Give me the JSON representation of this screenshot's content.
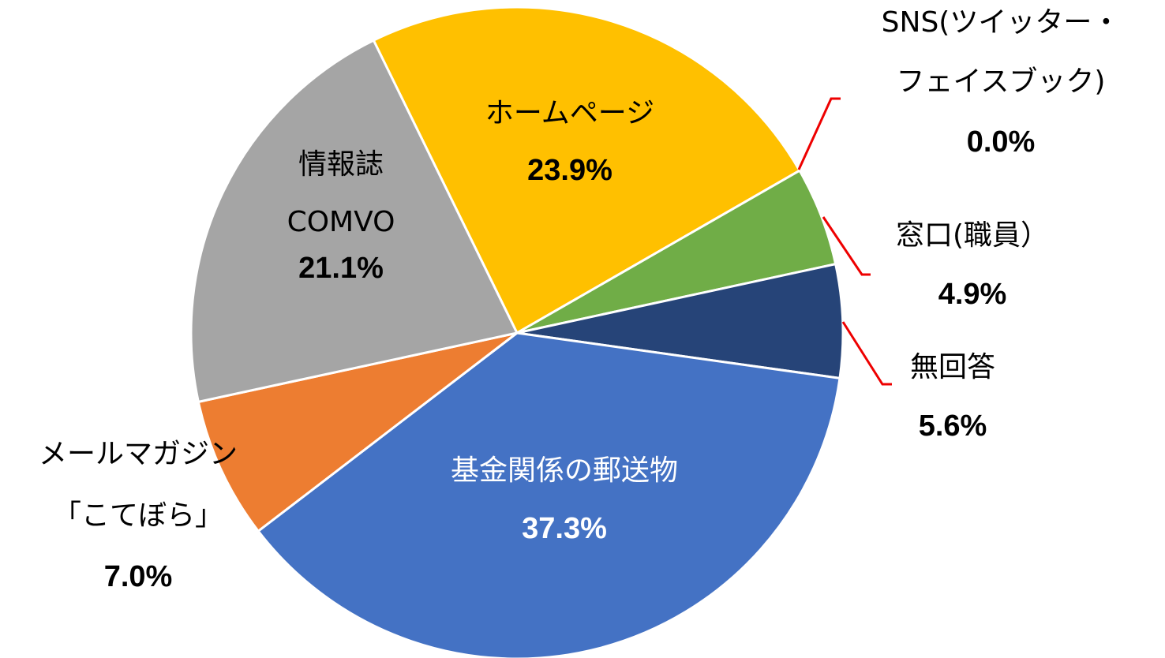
{
  "chart_data": {
    "type": "pie",
    "categories": [
      "ホームページ",
      "SNS(ツイッター・\nフェイスブック)",
      "窓口(職員）",
      "無回答",
      "基金関係の郵送物",
      "メールマガジン\n「こてぼら」",
      "情報誌\nCOMVO"
    ],
    "values": [
      23.9,
      0.0,
      4.9,
      5.6,
      37.3,
      7.0,
      21.1
    ],
    "value_labels": [
      "23.9%",
      "0.0%",
      "4.9%",
      "5.6%",
      "37.3%",
      "7.0%",
      "21.1%"
    ],
    "colors": [
      "#ffc000",
      "#5b9bd5",
      "#70ad47",
      "#264478",
      "#4472c4",
      "#ed7d31",
      "#a5a5a5"
    ]
  }
}
